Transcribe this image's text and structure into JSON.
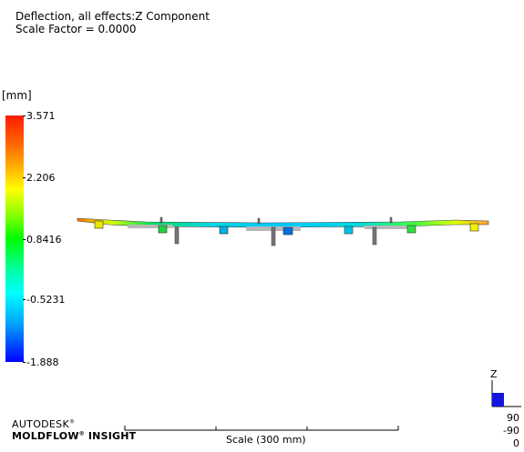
{
  "header": {
    "result_title": "Deflection, all effects:Z Component",
    "scale_factor": "Scale Factor =  0.0000"
  },
  "legend": {
    "unit": "[mm]",
    "ticks": [
      "3.571",
      "2.206",
      "0.8416",
      "-0.5231",
      "-1.888"
    ],
    "colors": {
      "max": "#ff1a00",
      "mid": "#00ff00",
      "min": "#0000ff"
    }
  },
  "branding": {
    "line1": "AUTODESK",
    "registered": "®",
    "line2": "MOLDFLOW",
    "line2_suffix": "INSIGHT"
  },
  "scale_bar": {
    "label": "Scale (300 mm)"
  },
  "orientation": {
    "axis_label": "Z",
    "angles": [
      "90",
      "-90",
      "0"
    ]
  }
}
